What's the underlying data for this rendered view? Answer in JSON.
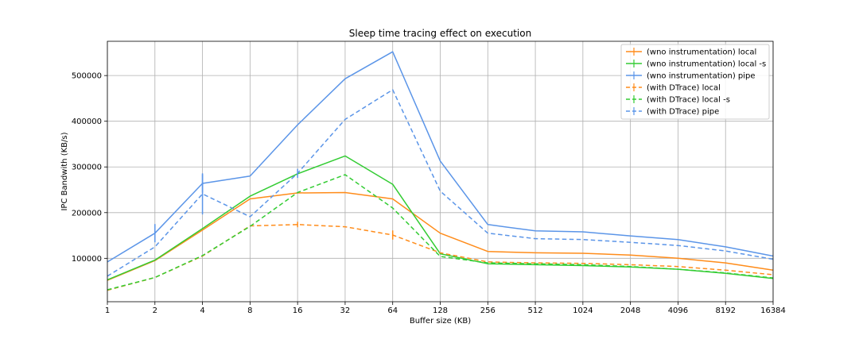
{
  "chart_data": {
    "type": "line",
    "title": "Sleep time tracing effect on execution",
    "xlabel": "Buffer size (KB)",
    "ylabel": "IPC Bandwith (KB/s)",
    "x_scale": "log2",
    "x": [
      1,
      2,
      4,
      8,
      16,
      32,
      64,
      128,
      256,
      512,
      1024,
      2048,
      4096,
      8192,
      16384
    ],
    "x_tick_labels": [
      "1",
      "2",
      "4",
      "8",
      "16",
      "32",
      "64",
      "128",
      "256",
      "512",
      "1024",
      "2048",
      "4096",
      "8192",
      "16384"
    ],
    "y_ticks": [
      100000,
      200000,
      300000,
      400000,
      500000
    ],
    "y_tick_labels": [
      "100000",
      "200000",
      "300000",
      "400000",
      "500000"
    ],
    "ylim": [
      5000,
      575000
    ],
    "grid": true,
    "legend_position": "top-right",
    "series": [
      {
        "name": "(wno instrumentation) local",
        "color": "#ff8c1a",
        "dashed": false,
        "values": [
          52000,
          95000,
          162000,
          230000,
          243000,
          244000,
          230000,
          155000,
          115000,
          112000,
          111000,
          107000,
          100000,
          90000,
          74000
        ],
        "err": [
          0,
          0,
          0,
          0,
          0,
          0,
          0,
          0,
          0,
          0,
          0,
          0,
          0,
          0,
          0
        ]
      },
      {
        "name": "(wno instrumentation) local -s",
        "color": "#33cc33",
        "dashed": false,
        "values": [
          53000,
          96000,
          165000,
          236000,
          285000,
          324000,
          262000,
          110000,
          88000,
          86000,
          84000,
          81000,
          76000,
          67000,
          56000
        ],
        "err": [
          0,
          0,
          0,
          0,
          0,
          0,
          0,
          0,
          0,
          0,
          0,
          0,
          0,
          0,
          0
        ]
      },
      {
        "name": "(wno instrumentation) pipe",
        "color": "#5b95e8",
        "dashed": false,
        "values": [
          92000,
          155000,
          264000,
          280000,
          392000,
          493000,
          552000,
          313000,
          174000,
          160000,
          158000,
          149000,
          141000,
          125000,
          105000
        ],
        "err": [
          0,
          20000,
          20000,
          0,
          0,
          0,
          0,
          0,
          0,
          0,
          0,
          0,
          0,
          0,
          0
        ]
      },
      {
        "name": "(with DTrace) local",
        "color": "#ff8c1a",
        "dashed": true,
        "values": [
          30000,
          58000,
          105000,
          171000,
          174000,
          169000,
          151000,
          112000,
          92000,
          90000,
          89000,
          86000,
          82000,
          74000,
          64000
        ],
        "err": [
          0,
          0,
          0,
          0,
          6000,
          0,
          10000,
          0,
          0,
          0,
          0,
          0,
          0,
          0,
          0
        ]
      },
      {
        "name": "(with DTrace) local -s",
        "color": "#33cc33",
        "dashed": true,
        "values": [
          31000,
          58000,
          106000,
          170000,
          244000,
          283000,
          210000,
          104000,
          90000,
          88000,
          86000,
          82000,
          76000,
          68000,
          57000
        ],
        "err": [
          0,
          0,
          0,
          0,
          0,
          0,
          0,
          0,
          0,
          0,
          0,
          0,
          0,
          0,
          0
        ]
      },
      {
        "name": "(with DTrace) pipe",
        "color": "#5b95e8",
        "dashed": true,
        "values": [
          61000,
          125000,
          241000,
          191000,
          286000,
          404000,
          469000,
          247000,
          155000,
          143000,
          141000,
          135000,
          128000,
          116000,
          98000
        ],
        "err": [
          0,
          0,
          45000,
          0,
          10000,
          0,
          0,
          0,
          0,
          0,
          0,
          0,
          0,
          0,
          0
        ]
      }
    ]
  }
}
